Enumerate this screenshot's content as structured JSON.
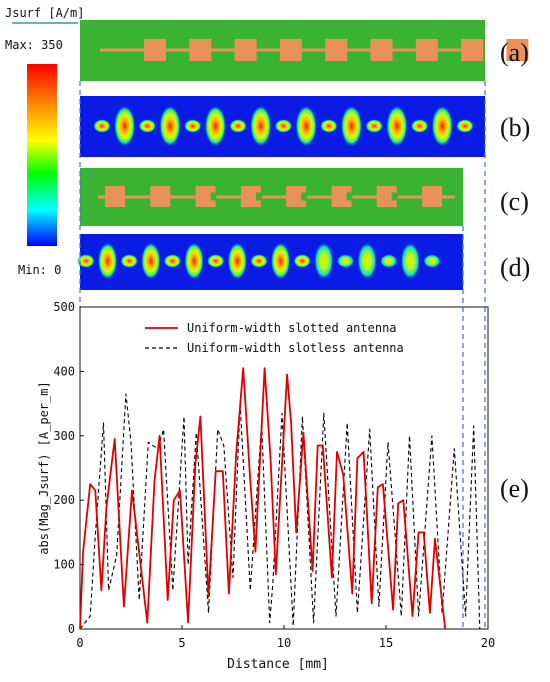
{
  "colorbar": {
    "title": "Jsurf [A/m]",
    "max_label": "Max: 350",
    "min_label": "Min: 0",
    "stops": [
      "#ff0000",
      "#ff8800",
      "#ffff00",
      "#00ff00",
      "#00ffff",
      "#0000ff"
    ]
  },
  "panels": {
    "a": {
      "label": "(a)",
      "pads": 9
    },
    "b": {
      "label": "(b)",
      "spots": 17
    },
    "c": {
      "label": "(c)",
      "pads": 8
    },
    "d": {
      "label": "(d)",
      "spots": 17
    },
    "e": {
      "label": "(e)"
    }
  },
  "colors": {
    "substrate": "#3ab335",
    "pad": "#e8915a",
    "field_bg": "#0a1be6",
    "slotted": "#e00000",
    "slotless": "#000000",
    "guide": "#3b6fd4"
  },
  "chart_data": {
    "type": "line",
    "xlabel": "Distance [mm]",
    "ylabel": "abs(Mag_Jsurf) [A_per_m]",
    "xlim": [
      0,
      20
    ],
    "ylim": [
      0,
      500
    ],
    "xticks": [
      0,
      5,
      10,
      15,
      20
    ],
    "yticks": [
      0,
      100,
      200,
      300,
      400,
      500
    ],
    "legend_position": "top-center",
    "series": [
      {
        "name": "Uniform-width slotted antenna",
        "style": "solid",
        "color": "#e00000",
        "x": [
          0,
          0.15,
          0.5,
          0.75,
          1.05,
          1.3,
          1.7,
          2.15,
          2.55,
          3.3,
          3.65,
          3.9,
          4.3,
          4.6,
          4.9,
          5.3,
          5.65,
          5.9,
          6.3,
          6.65,
          7.0,
          7.3,
          7.65,
          8.0,
          8.35,
          8.6,
          9.05,
          9.35,
          9.6,
          10.15,
          10.35,
          10.6,
          10.95,
          11.4,
          11.65,
          11.9,
          12.35,
          12.6,
          12.9,
          13.35,
          13.6,
          13.9,
          14.3,
          14.6,
          14.85,
          15.35,
          15.6,
          15.85,
          16.3,
          16.6,
          16.85,
          17.15,
          17.4,
          17.9
        ],
        "y": [
          0,
          120,
          225,
          215,
          60,
          190,
          295,
          35,
          215,
          10,
          230,
          300,
          45,
          200,
          215,
          10,
          255,
          330,
          50,
          245,
          245,
          55,
          270,
          405,
          230,
          120,
          405,
          260,
          85,
          395,
          320,
          150,
          305,
          90,
          285,
          285,
          80,
          275,
          240,
          55,
          265,
          275,
          40,
          220,
          225,
          30,
          195,
          200,
          20,
          150,
          150,
          25,
          140,
          0
        ]
      },
      {
        "name": "Uniform-width slotless antenna",
        "style": "dashed",
        "color": "#000000",
        "x": [
          0,
          0.5,
          0.75,
          1.15,
          1.4,
          1.8,
          2.25,
          2.5,
          2.9,
          3.35,
          3.8,
          4.1,
          4.55,
          5.1,
          5.3,
          5.7,
          6.3,
          6.75,
          7.05,
          7.5,
          7.85,
          8.35,
          8.9,
          9.3,
          9.45,
          9.9,
          10.45,
          10.9,
          11.45,
          11.95,
          12.55,
          13.1,
          13.6,
          14.2,
          14.65,
          15.1,
          15.75,
          16.15,
          16.6,
          17.25,
          17.75,
          18.35,
          18.9,
          19.3,
          19.6
        ],
        "y": [
          0,
          20,
          145,
          320,
          60,
          115,
          365,
          290,
          45,
          290,
          280,
          310,
          60,
          330,
          100,
          305,
          25,
          310,
          285,
          80,
          350,
          60,
          320,
          10,
          70,
          335,
          5,
          330,
          10,
          335,
          20,
          320,
          25,
          310,
          35,
          290,
          20,
          300,
          20,
          300,
          25,
          280,
          20,
          315,
          0
        ]
      }
    ]
  }
}
